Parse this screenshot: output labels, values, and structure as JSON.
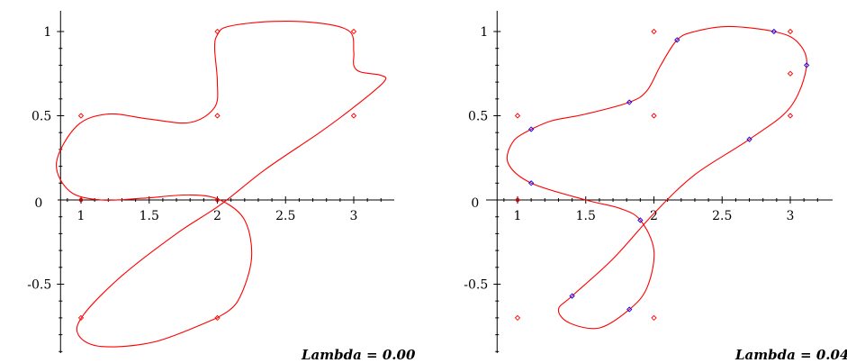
{
  "colors": {
    "curve": "#ff0000",
    "control_points": "#ff0000",
    "fitted_points": "#0000ff",
    "axes": "#000000"
  },
  "chart_data": [
    {
      "type": "line",
      "annotation": "Lambda = 0.00",
      "xlim": [
        0.85,
        3.25
      ],
      "ylim": [
        -0.92,
        1.08
      ],
      "x_ticks": [
        "1",
        "1.5",
        "2",
        "2.5",
        "3"
      ],
      "y_ticks": [
        "-0.5",
        "0.5",
        "1"
      ],
      "origin_label": "0",
      "grid": false,
      "control_points": [
        [
          1,
          0
        ],
        [
          1,
          0.5
        ],
        [
          2,
          0.5
        ],
        [
          2,
          1
        ],
        [
          3,
          1
        ],
        [
          3,
          0.5
        ],
        [
          2,
          0
        ],
        [
          1,
          -0.7
        ],
        [
          2,
          -0.7
        ]
      ],
      "curve": [
        [
          2,
          -0.7
        ],
        [
          1.55,
          -0.84
        ],
        [
          1.15,
          -0.87
        ],
        [
          0.98,
          -0.8
        ],
        [
          1.02,
          -0.68
        ],
        [
          1.3,
          -0.45
        ],
        [
          1.7,
          -0.2
        ],
        [
          2.02,
          -0.03
        ],
        [
          2.35,
          0.18
        ],
        [
          2.75,
          0.4
        ],
        [
          3,
          0.55
        ],
        [
          3.22,
          0.7
        ],
        [
          3.2,
          0.74
        ],
        [
          3.05,
          0.76
        ],
        [
          3.0,
          0.8
        ],
        [
          3.0,
          0.88
        ],
        [
          2.97,
          1.0
        ],
        [
          2.75,
          1.05
        ],
        [
          2.4,
          1.06
        ],
        [
          2.08,
          1.03
        ],
        [
          2.0,
          0.98
        ],
        [
          1.98,
          0.9
        ],
        [
          2.0,
          0.7
        ],
        [
          1.98,
          0.55
        ],
        [
          1.8,
          0.46
        ],
        [
          1.5,
          0.48
        ],
        [
          1.2,
          0.51
        ],
        [
          0.97,
          0.44
        ],
        [
          0.82,
          0.22
        ],
        [
          0.92,
          0.05
        ],
        [
          1.15,
          0.0
        ],
        [
          1.45,
          0.01
        ],
        [
          1.8,
          0.03
        ],
        [
          2.02,
          0.0
        ],
        [
          2.2,
          -0.12
        ],
        [
          2.25,
          -0.35
        ],
        [
          2.15,
          -0.6
        ],
        [
          2,
          -0.7
        ]
      ]
    },
    {
      "type": "line",
      "annotation": "Lambda = 0.04",
      "xlim": [
        0.85,
        3.25
      ],
      "ylim": [
        -0.92,
        1.08
      ],
      "x_ticks": [
        "1",
        "1.5",
        "2",
        "2.5",
        "3"
      ],
      "y_ticks": [
        "-0.5",
        "0.5",
        "1"
      ],
      "origin_label": "0",
      "grid": false,
      "control_points": [
        [
          1,
          0
        ],
        [
          1,
          0.5
        ],
        [
          2,
          0.5
        ],
        [
          2,
          1
        ],
        [
          3,
          1
        ],
        [
          3,
          0.75
        ],
        [
          3,
          0.5
        ],
        [
          1,
          -0.7
        ],
        [
          2,
          -0.7
        ]
      ],
      "fitted_points": [
        [
          1.1,
          0.42
        ],
        [
          1.1,
          0.1
        ],
        [
          1.82,
          0.58
        ],
        [
          2.17,
          0.95
        ],
        [
          2.88,
          1.0
        ],
        [
          3.12,
          0.8
        ],
        [
          2.7,
          0.36
        ],
        [
          1.9,
          -0.12
        ],
        [
          1.4,
          -0.57
        ],
        [
          1.82,
          -0.65
        ]
      ],
      "curve": [
        [
          1.1,
          0.42
        ],
        [
          0.97,
          0.35
        ],
        [
          0.93,
          0.22
        ],
        [
          1.1,
          0.1
        ],
        [
          1.5,
          0.0
        ],
        [
          1.75,
          -0.05
        ],
        [
          1.9,
          -0.12
        ],
        [
          2.0,
          -0.3
        ],
        [
          1.95,
          -0.52
        ],
        [
          1.82,
          -0.65
        ],
        [
          1.6,
          -0.76
        ],
        [
          1.38,
          -0.73
        ],
        [
          1.3,
          -0.65
        ],
        [
          1.4,
          -0.57
        ],
        [
          1.7,
          -0.35
        ],
        [
          2.0,
          -0.08
        ],
        [
          2.3,
          0.15
        ],
        [
          2.7,
          0.36
        ],
        [
          3.0,
          0.55
        ],
        [
          3.12,
          0.8
        ],
        [
          3.05,
          0.94
        ],
        [
          2.88,
          1.0
        ],
        [
          2.55,
          1.03
        ],
        [
          2.3,
          1.0
        ],
        [
          2.17,
          0.95
        ],
        [
          2.05,
          0.8
        ],
        [
          1.95,
          0.65
        ],
        [
          1.82,
          0.58
        ],
        [
          1.5,
          0.51
        ],
        [
          1.25,
          0.47
        ],
        [
          1.1,
          0.42
        ]
      ]
    }
  ]
}
